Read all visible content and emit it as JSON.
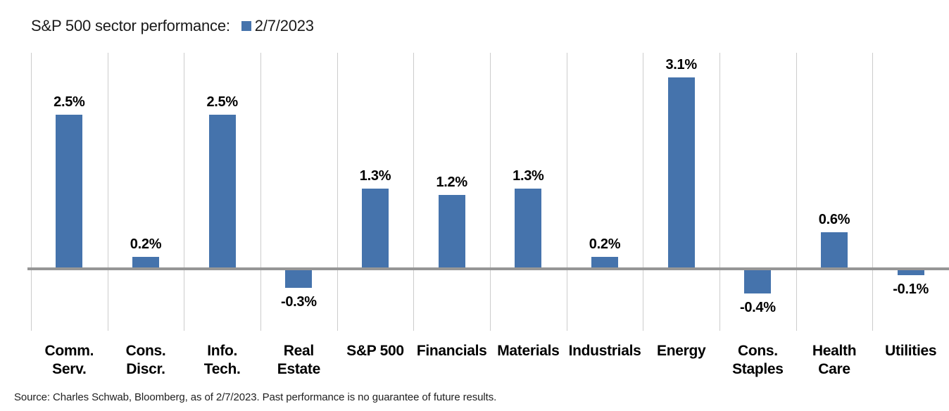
{
  "title": "S&P 500 sector performance:",
  "legend": {
    "label": "2/7/2023",
    "swatch_color": "#4573AC"
  },
  "source": "Source: Charles Schwab, Bloomberg, as of 2/7/2023.  Past performance is no guarantee of future results.",
  "colors": {
    "bar": "#4573AC",
    "zero_line": "#969696",
    "gridline": "#cccccc",
    "text": "#000000"
  },
  "chart_data": {
    "type": "bar",
    "title": "S&P 500 sector performance:",
    "series_name": "2/7/2023",
    "categories": [
      "Comm. Serv.",
      "Cons. Discr.",
      "Info. Tech.",
      "Real Estate",
      "S&P 500",
      "Financials",
      "Materials",
      "Industrials",
      "Energy",
      "Cons. Staples",
      "Health Care",
      "Utilities"
    ],
    "categories_display": [
      [
        "Comm.",
        "Serv."
      ],
      [
        "Cons.",
        "Discr."
      ],
      [
        "Info.",
        "Tech."
      ],
      [
        "Real",
        "Estate"
      ],
      [
        "S&P 500"
      ],
      [
        "Financials"
      ],
      [
        "Materials"
      ],
      [
        "Industrials"
      ],
      [
        "Energy"
      ],
      [
        "Cons.",
        "Staples"
      ],
      [
        "Health",
        "Care"
      ],
      [
        "Utilities"
      ]
    ],
    "values": [
      2.5,
      0.2,
      2.5,
      -0.3,
      1.3,
      1.2,
      1.3,
      0.2,
      3.1,
      -0.4,
      0.6,
      -0.1
    ],
    "value_labels": [
      "2.5%",
      "0.2%",
      "2.5%",
      "-0.3%",
      "1.3%",
      "1.2%",
      "1.3%",
      "0.2%",
      "3.1%",
      "-0.4%",
      "0.6%",
      "-0.1%"
    ],
    "xlabel": "",
    "ylabel": "",
    "ylim": [
      -1.0,
      3.5
    ],
    "grid": "vertical-only",
    "legend_position": "top-right-of-title",
    "bar_color": "#4573AC"
  }
}
